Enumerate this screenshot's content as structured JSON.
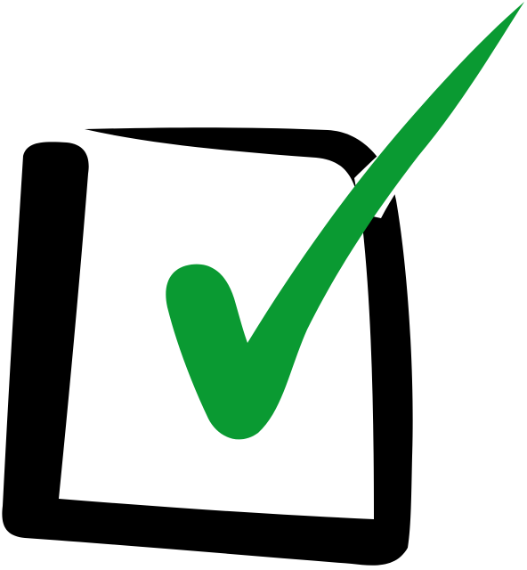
{
  "icon": {
    "name": "checkbox-checked-icon",
    "box_color": "#000000",
    "check_color": "#0a9a32",
    "background_color": "#ffffff"
  }
}
